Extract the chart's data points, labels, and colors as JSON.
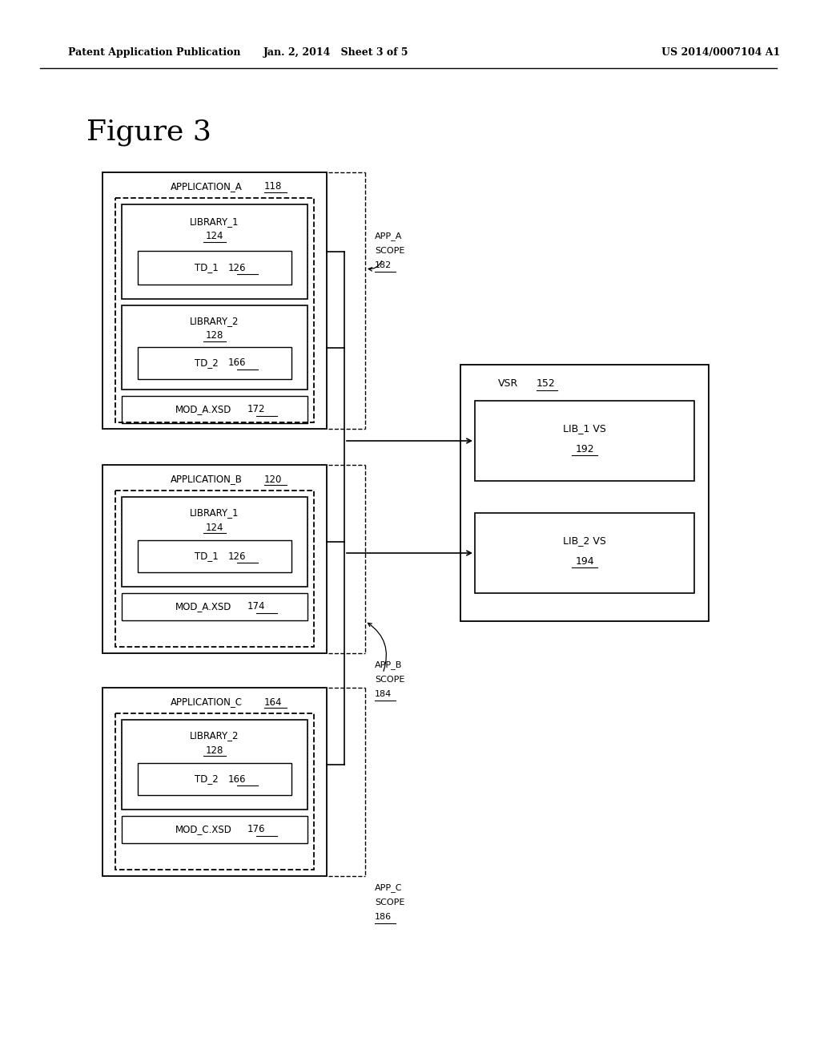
{
  "bg_color": "#ffffff",
  "header_left": "Patent Application Publication",
  "header_center": "Jan. 2, 2014   Sheet 3 of 5",
  "header_right": "US 2014/0007104 A1",
  "figure_label": "Figure 3"
}
